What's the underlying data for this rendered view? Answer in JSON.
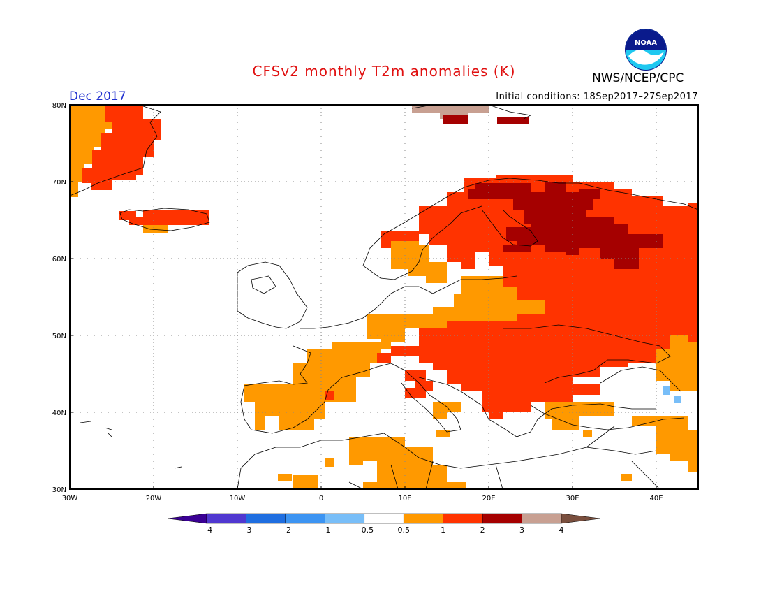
{
  "title": "CFSv2 monthly T2m anomalies (K)",
  "subtitle": "Dec 2017",
  "initial_conditions": "Initial conditions: 18Sep2017–27Sep2017",
  "agency": "NWS/NCEP/CPC",
  "logo_text": "NOAA",
  "map": {
    "lon_range": [
      -30,
      45
    ],
    "lat_range": [
      30,
      80
    ],
    "lat_ticks": [
      {
        "value": 80,
        "label": "80N"
      },
      {
        "value": 70,
        "label": "70N"
      },
      {
        "value": 60,
        "label": "60N"
      },
      {
        "value": 50,
        "label": "50N"
      },
      {
        "value": 40,
        "label": "40N"
      },
      {
        "value": 30,
        "label": "30N"
      }
    ],
    "lon_ticks": [
      {
        "value": -30,
        "label": "30W"
      },
      {
        "value": -20,
        "label": "20W"
      },
      {
        "value": -10,
        "label": "10W"
      },
      {
        "value": 0,
        "label": "0"
      },
      {
        "value": 10,
        "label": "10E"
      },
      {
        "value": 20,
        "label": "20E"
      },
      {
        "value": 30,
        "label": "30E"
      },
      {
        "value": 40,
        "label": "40E"
      }
    ],
    "grid": "dotted",
    "anomaly_regions": [
      {
        "level": "1 to 2",
        "color": "#ff3300",
        "desc": "Scandinavia, eastern Europe, western Russia, Greenland coast"
      },
      {
        "level": "2 to 3",
        "color": "#a50000",
        "desc": "Finland and northwest Russia"
      },
      {
        "level": "0.5 to 1",
        "color": "#ff9900",
        "desc": "France, Iberia, central Europe, north Africa, Turkey"
      },
      {
        "level": "3 to 4",
        "color": "#c8a092",
        "desc": "Svalbard"
      }
    ]
  },
  "colorbar": {
    "colors": [
      "#3a0094",
      "#5038d0",
      "#1f6ee0",
      "#3c94f2",
      "#78bef8",
      "#ffffff",
      "#ff9900",
      "#ff3300",
      "#a50000",
      "#c8a092",
      "#7a4f3e"
    ],
    "labels": [
      "−4",
      "−3",
      "−2",
      "−1",
      "−0.5",
      "0.5",
      "1",
      "2",
      "3",
      "4"
    ]
  }
}
